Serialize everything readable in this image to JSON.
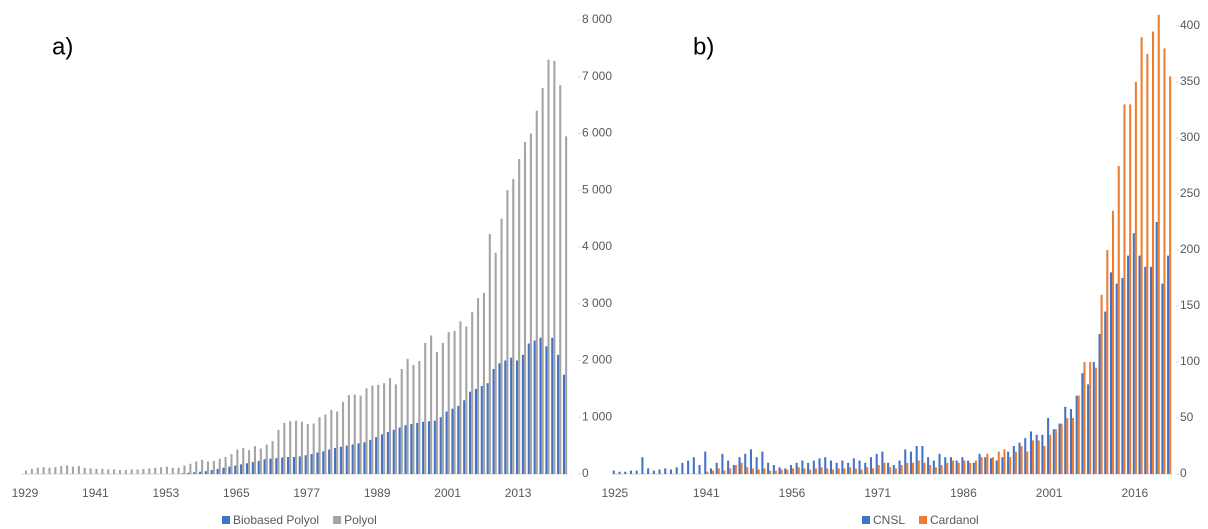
{
  "chart_data": [
    {
      "type": "bar",
      "label": "a)",
      "categories": [
        "1929",
        null,
        null,
        null,
        null,
        null,
        null,
        null,
        null,
        null,
        null,
        null,
        "1941",
        null,
        null,
        null,
        null,
        null,
        null,
        null,
        null,
        null,
        null,
        null,
        "1953",
        null,
        null,
        null,
        null,
        null,
        null,
        null,
        null,
        null,
        null,
        null,
        "1965",
        null,
        null,
        null,
        null,
        null,
        null,
        null,
        null,
        null,
        null,
        null,
        "1977",
        null,
        null,
        null,
        null,
        null,
        null,
        null,
        null,
        null,
        null,
        null,
        "1989",
        null,
        null,
        null,
        null,
        null,
        null,
        null,
        null,
        null,
        null,
        null,
        "2001",
        null,
        null,
        null,
        null,
        null,
        null,
        null,
        null,
        null,
        null,
        null,
        "2013",
        null,
        null,
        null,
        null,
        null,
        null,
        null,
        null
      ],
      "series": [
        {
          "name": "Biobased Polyol",
          "color": "#4472c4",
          "values": [
            0,
            0,
            0,
            0,
            0,
            0,
            0,
            0,
            0,
            0,
            0,
            0,
            0,
            0,
            0,
            0,
            0,
            0,
            0,
            0,
            0,
            0,
            0,
            0,
            0,
            0,
            0,
            10,
            20,
            30,
            40,
            50,
            70,
            90,
            110,
            130,
            150,
            170,
            190,
            210,
            230,
            260,
            270,
            280,
            290,
            300,
            300,
            310,
            330,
            350,
            380,
            400,
            430,
            460,
            480,
            500,
            520,
            540,
            560,
            600,
            650,
            700,
            740,
            780,
            820,
            860,
            880,
            900,
            920,
            930,
            940,
            1000,
            1100,
            1150,
            1200,
            1300,
            1450,
            1500,
            1550,
            1600,
            1850,
            1950,
            2000,
            2050,
            2000,
            2100,
            2300,
            2350,
            2400,
            2250,
            2400,
            2100,
            1750
          ]
        },
        {
          "name": "Polyol",
          "color": "#a5a5a5",
          "values": [
            60,
            90,
            110,
            120,
            110,
            120,
            140,
            150,
            130,
            140,
            110,
            100,
            90,
            90,
            80,
            80,
            70,
            70,
            80,
            80,
            90,
            100,
            110,
            120,
            130,
            110,
            110,
            150,
            180,
            220,
            250,
            220,
            230,
            270,
            300,
            350,
            430,
            460,
            420,
            490,
            450,
            520,
            580,
            780,
            900,
            930,
            940,
            920,
            880,
            890,
            1000,
            1050,
            1130,
            1100,
            1270,
            1390,
            1400,
            1380,
            1510,
            1560,
            1570,
            1600,
            1690,
            1580,
            1850,
            2030,
            1920,
            1990,
            2310,
            2440,
            2150,
            2310,
            2500,
            2520,
            2690,
            2600,
            2850,
            3100,
            3190,
            4230,
            3900,
            4500,
            5000,
            5200,
            5550,
            5850,
            6000,
            6400,
            6800,
            7300,
            7280,
            6850,
            5950
          ]
        }
      ],
      "ylim": [
        0,
        8000
      ],
      "yticks": [
        0,
        {
          "value": 1000,
          "label": "1 000"
        },
        {
          "value": 2000,
          "label": "2 000"
        },
        {
          "value": 3000,
          "label": "3 000"
        },
        {
          "value": 4000,
          "label": "4 000"
        },
        {
          "value": 5000,
          "label": "5 000"
        },
        {
          "value": 6000,
          "label": "6 000"
        },
        {
          "value": 7000,
          "label": "7 000"
        },
        {
          "value": 8000,
          "label": "8 000"
        }
      ],
      "legend": "bottom"
    },
    {
      "type": "bar",
      "label": "b)",
      "categories": [
        "1925",
        null,
        null,
        null,
        null,
        null,
        null,
        null,
        null,
        null,
        null,
        null,
        null,
        null,
        null,
        null,
        "1941",
        null,
        null,
        null,
        null,
        null,
        null,
        null,
        null,
        null,
        null,
        null,
        null,
        null,
        null,
        "1956",
        null,
        null,
        null,
        null,
        null,
        null,
        null,
        null,
        null,
        null,
        null,
        null,
        null,
        null,
        "1971",
        null,
        null,
        null,
        null,
        null,
        null,
        null,
        null,
        null,
        null,
        null,
        null,
        null,
        null,
        "1986",
        null,
        null,
        null,
        null,
        null,
        null,
        null,
        null,
        null,
        null,
        null,
        null,
        null,
        null,
        "2001",
        null,
        null,
        null,
        null,
        null,
        null,
        null,
        null,
        null,
        null,
        null,
        null,
        null,
        null,
        "2016",
        null,
        null,
        null,
        null,
        null,
        null
      ],
      "series": [
        {
          "name": "CNSL",
          "color": "#4472c4",
          "values": [
            3,
            2,
            2,
            3,
            3,
            15,
            5,
            3,
            4,
            5,
            4,
            6,
            10,
            12,
            15,
            8,
            20,
            5,
            10,
            18,
            12,
            8,
            15,
            18,
            22,
            15,
            20,
            10,
            8,
            6,
            5,
            8,
            10,
            12,
            10,
            12,
            14,
            15,
            12,
            10,
            12,
            10,
            14,
            12,
            10,
            15,
            18,
            20,
            10,
            8,
            12,
            22,
            20,
            25,
            25,
            15,
            12,
            18,
            15,
            15,
            12,
            15,
            12,
            10,
            18,
            15,
            14,
            12,
            15,
            20,
            25,
            28,
            32,
            38,
            35,
            35,
            50,
            40,
            45,
            60,
            58,
            70,
            90,
            80,
            100,
            125,
            145,
            180,
            170,
            175,
            195,
            215,
            195,
            185,
            185,
            225,
            170,
            195
          ]
        },
        {
          "name": "Cardanol",
          "color": "#ed7d31",
          "values": [
            0,
            0,
            0,
            0,
            0,
            0,
            0,
            0,
            0,
            0,
            0,
            0,
            0,
            0,
            0,
            0,
            2,
            3,
            5,
            3,
            5,
            8,
            10,
            6,
            5,
            4,
            5,
            3,
            3,
            4,
            4,
            5,
            6,
            5,
            4,
            5,
            6,
            5,
            4,
            5,
            5,
            6,
            5,
            4,
            6,
            5,
            8,
            10,
            6,
            5,
            8,
            10,
            10,
            12,
            10,
            8,
            6,
            8,
            10,
            12,
            10,
            12,
            10,
            12,
            15,
            18,
            15,
            20,
            22,
            15,
            20,
            25,
            20,
            30,
            30,
            25,
            35,
            40,
            45,
            50,
            50,
            70,
            100,
            100,
            95,
            160,
            200,
            235,
            275,
            330,
            330,
            350,
            390,
            375,
            395,
            410,
            380,
            355
          ]
        }
      ],
      "ylim": [
        0,
        400
      ],
      "yticks": [
        0,
        50,
        100,
        150,
        200,
        250,
        300,
        350,
        400
      ],
      "legend": "bottom"
    }
  ]
}
